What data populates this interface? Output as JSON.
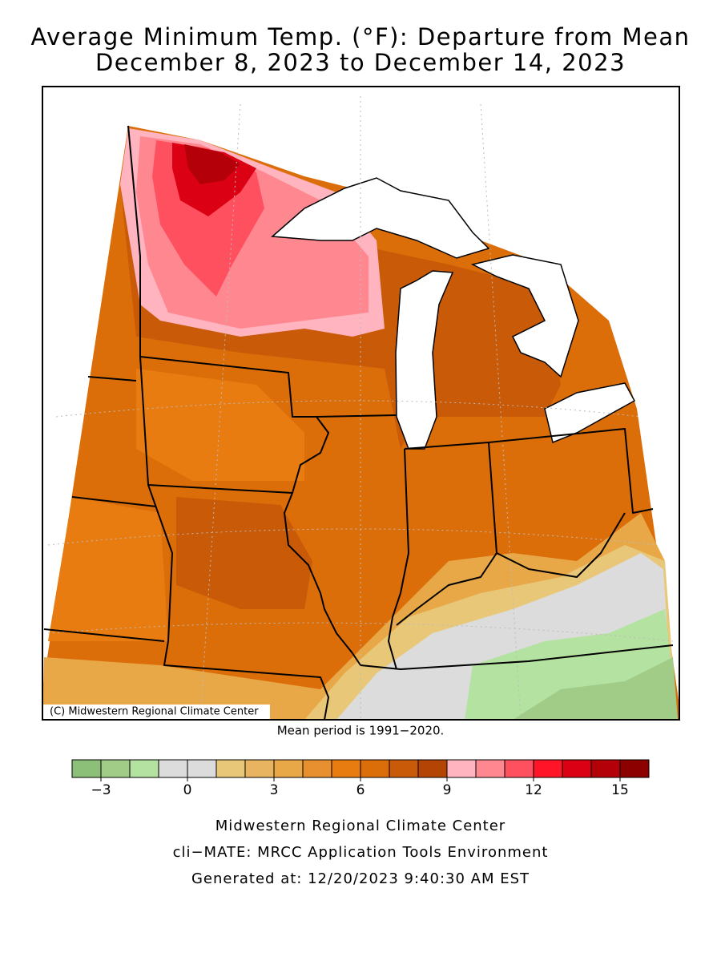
{
  "title": [
    "Average Minimum Temp. (°F): Departure from Mean",
    "December 8, 2023 to December 14, 2023"
  ],
  "map": {
    "credit": "(C) Midwestern Regional Climate Center",
    "note": "Mean period is 1991−2020."
  },
  "colorbar": {
    "range": [
      -4,
      16
    ],
    "colors": [
      "#8cbf78",
      "#a0cc88",
      "#b4e2a0",
      "#dcdcdc",
      "#dcdcdc",
      "#e8c878",
      "#e8b460",
      "#e8a848",
      "#e89030",
      "#e87c10",
      "#dc6e0a",
      "#c85a08",
      "#b44404",
      "#ffb4c0",
      "#ff8890",
      "#ff5060",
      "#ff1428",
      "#dc0014",
      "#b40008",
      "#8c0000"
    ],
    "ticks": [
      {
        "value": -3,
        "label": "−3"
      },
      0,
      3,
      6,
      9,
      12,
      15
    ]
  },
  "footer": [
    "Midwestern Regional Climate Center",
    "cli−MATE: MRCC Application Tools Environment",
    "Generated at: 12/20/2023 9:40:30 AM EST"
  ]
}
